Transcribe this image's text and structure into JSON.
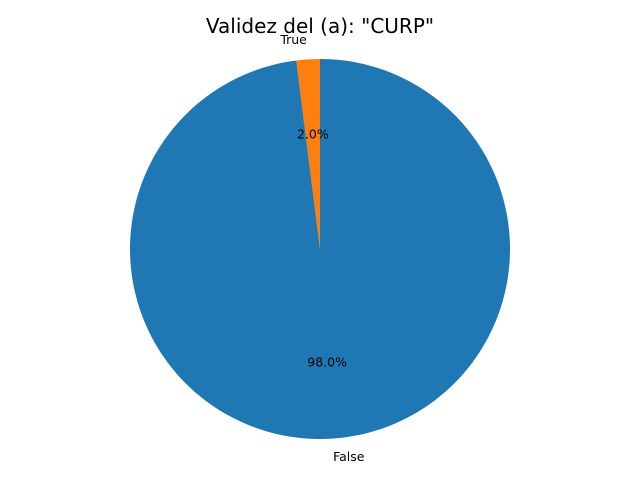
{
  "chart_data": {
    "type": "pie",
    "title": "Validez del (a): \"CURP\"",
    "slices": [
      {
        "label": "True",
        "value": 2.0,
        "pct_label": "2.0%",
        "color": "#ff7f0e"
      },
      {
        "label": "False",
        "value": 98.0,
        "pct_label": "98.0%",
        "color": "#1f77b4"
      }
    ],
    "start_angle_deg": 90,
    "direction": "counterclockwise"
  }
}
